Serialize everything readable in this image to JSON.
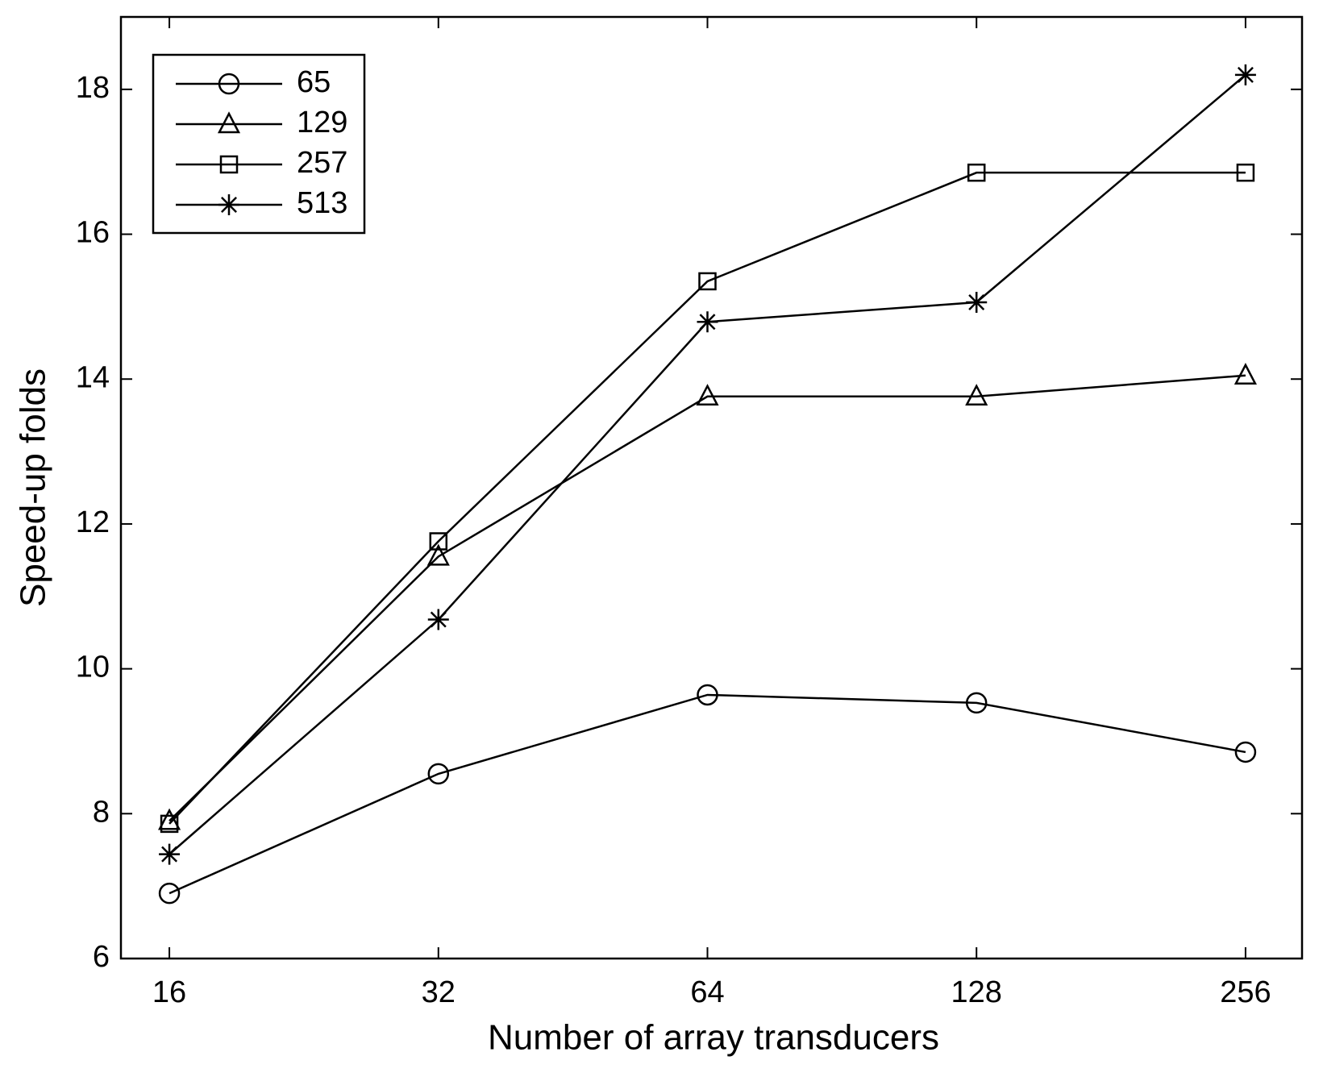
{
  "chart_data": {
    "type": "line",
    "xlabel": "Number of array transducers",
    "ylabel": "Speed-up folds",
    "categories": [
      "16",
      "32",
      "64",
      "128",
      "256"
    ],
    "series": [
      {
        "name": "65",
        "marker": "circle",
        "color": "#000000",
        "values": [
          6.9,
          8.55,
          9.64,
          9.53,
          8.85
        ]
      },
      {
        "name": "129",
        "marker": "triangle",
        "color": "#000000",
        "values": [
          7.9,
          11.55,
          13.76,
          13.76,
          14.05
        ]
      },
      {
        "name": "257",
        "marker": "square",
        "color": "#000000",
        "values": [
          7.86,
          11.76,
          15.35,
          16.85,
          16.85
        ]
      },
      {
        "name": "513",
        "marker": "star",
        "color": "#000000",
        "values": [
          7.44,
          10.68,
          14.79,
          15.06,
          18.2
        ]
      }
    ],
    "ylim": [
      6,
      19
    ],
    "yticks": [
      6,
      8,
      10,
      12,
      14,
      16,
      18
    ],
    "grid": false,
    "legend": "upper left"
  }
}
